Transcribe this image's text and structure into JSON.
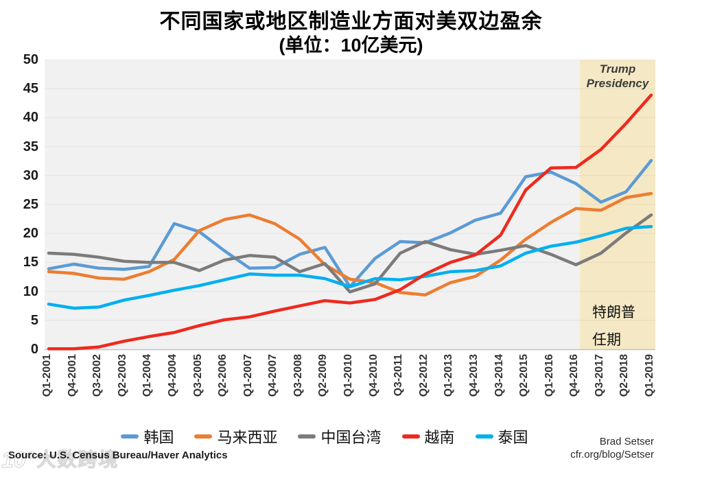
{
  "header": {
    "title": "不同国家或地区制造业方面对美双边盈余",
    "subtitle": "(单位：10亿美元)"
  },
  "chart_data": {
    "type": "line",
    "title": "不同国家或地区制造业方面对美双边盈余",
    "subtitle": "(单位：10亿美元)",
    "xlabel": "",
    "ylabel": "",
    "ylim": [
      0,
      50
    ],
    "y_ticks": [
      0,
      5,
      10,
      15,
      20,
      25,
      30,
      35,
      40,
      45,
      50
    ],
    "grid": true,
    "legend_position": "bottom",
    "categories": [
      "Q1-2001",
      "Q4-2001",
      "Q3-2002",
      "Q2-2003",
      "Q1-2004",
      "Q4-2004",
      "Q3-2005",
      "Q2-2006",
      "Q1-2007",
      "Q4-2007",
      "Q3-2008",
      "Q2-2009",
      "Q1-2010",
      "Q4-2010",
      "Q3-2011",
      "Q2-2012",
      "Q1-2013",
      "Q4-2013",
      "Q3-2014",
      "Q2-2015",
      "Q1-2016",
      "Q4-2016",
      "Q3-2017",
      "Q2-2018",
      "Q1-2019"
    ],
    "series": [
      {
        "id": "korea",
        "name": "韩国",
        "color": "#5B9BD5",
        "values": [
          13.9,
          14.7,
          14.0,
          13.8,
          14.3,
          21.7,
          20.3,
          17.0,
          14.0,
          14.1,
          16.4,
          17.6,
          10.8,
          15.7,
          18.6,
          18.4,
          20.1,
          22.3,
          23.5,
          29.8,
          30.6,
          28.6,
          25.4,
          27.2,
          32.6
        ]
      },
      {
        "id": "malaysia",
        "name": "马来西亚",
        "color": "#ED7D31",
        "values": [
          13.4,
          13.1,
          12.3,
          12.1,
          13.4,
          15.5,
          20.5,
          22.4,
          23.2,
          21.7,
          19.0,
          14.6,
          12.1,
          11.5,
          9.8,
          9.4,
          11.5,
          12.6,
          15.4,
          19.0,
          21.9,
          24.3,
          24.0,
          26.2,
          26.9
        ]
      },
      {
        "id": "taiwan",
        "name": "中国台湾",
        "color": "#7B7B7B",
        "values": [
          16.6,
          16.4,
          15.9,
          15.2,
          15.0,
          15.0,
          13.6,
          15.4,
          16.2,
          15.9,
          13.4,
          14.8,
          9.9,
          11.3,
          16.6,
          18.6,
          17.2,
          16.4,
          17.1,
          17.9,
          16.4,
          14.6,
          16.6,
          20.1,
          23.2
        ]
      },
      {
        "id": "vietnam",
        "name": "越南",
        "color": "#EE2A1E",
        "values": [
          0.1,
          0.1,
          0.4,
          1.4,
          2.2,
          2.9,
          4.1,
          5.1,
          5.6,
          6.6,
          7.5,
          8.4,
          8.0,
          8.6,
          10.3,
          13.0,
          15.0,
          16.3,
          19.7,
          27.5,
          31.3,
          31.4,
          34.5,
          39.0,
          43.9
        ]
      },
      {
        "id": "thailand",
        "name": "泰国",
        "color": "#00B0F0",
        "values": [
          7.8,
          7.1,
          7.3,
          8.5,
          9.3,
          10.2,
          11.0,
          12.0,
          13.0,
          12.8,
          12.8,
          12.2,
          10.8,
          12.2,
          12.0,
          12.6,
          13.4,
          13.6,
          14.4,
          16.6,
          17.8,
          18.5,
          19.6,
          20.9,
          21.2
        ]
      }
    ],
    "shaded_region": {
      "label": "Trump Presidency",
      "label_cn": "特朗普任期",
      "starts_after_category": "Q4-2016",
      "fill": "#F5E8C5"
    }
  },
  "annotations": {
    "trump_en_line1": "Trump",
    "trump_en_line2": "Presidency",
    "trump_cn_line1": "特朗普",
    "trump_cn_line2": "任期"
  },
  "footer": {
    "source": "Source: U.S. Census Bureau/Haver Analytics",
    "credit_name": "Brad Setser",
    "credit_url": "cfr.org/blog/Setser",
    "watermark_logo": "10°",
    "watermark_text": "大数跨境"
  },
  "colors": {
    "plot_background": "#F1F1F1",
    "shaded_region": "#F5E8C5",
    "axis_line": "#C2C2C2"
  }
}
